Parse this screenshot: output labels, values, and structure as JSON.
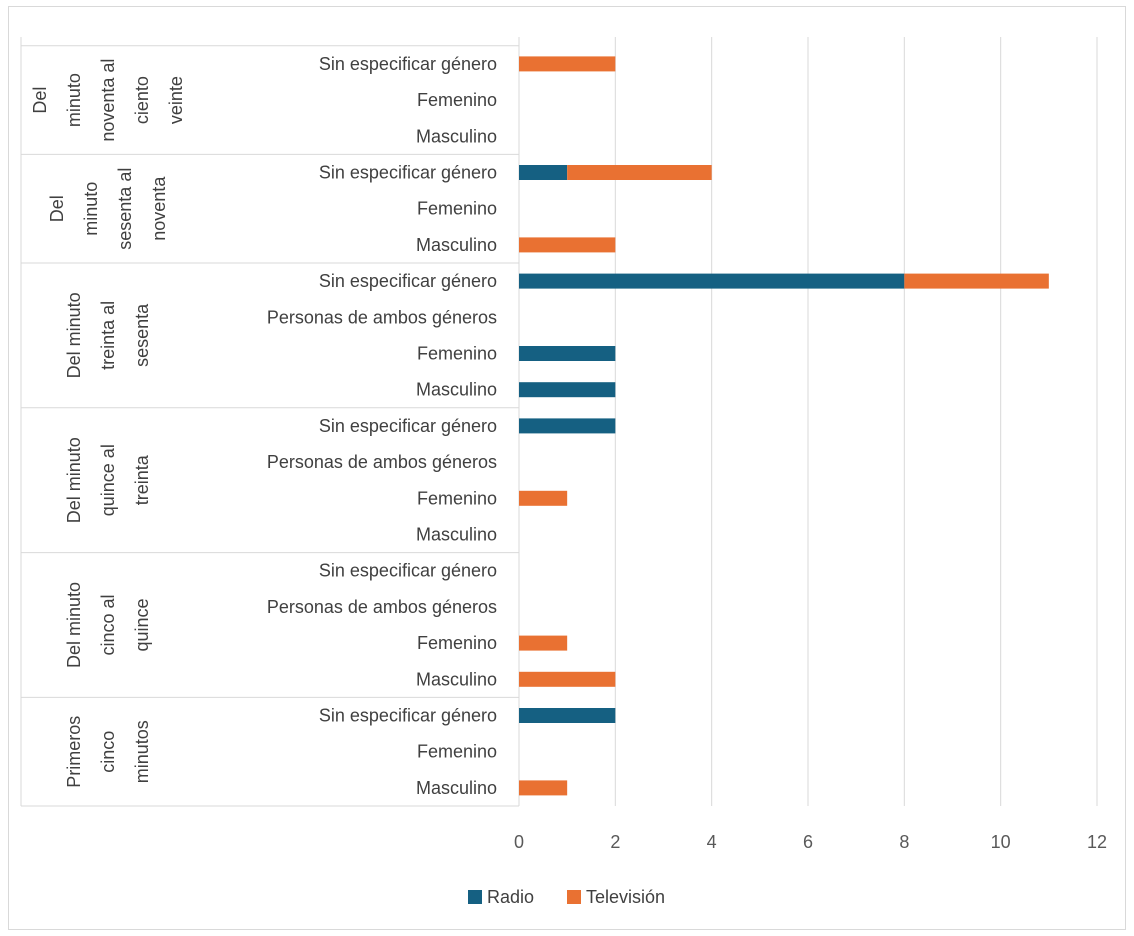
{
  "chart_data": {
    "type": "bar",
    "orientation": "horizontal",
    "stacked": true,
    "title": "",
    "xlabel": "",
    "ylabel": "",
    "xlim": [
      0,
      12
    ],
    "x_ticks": [
      0,
      2,
      4,
      6,
      8,
      10,
      12
    ],
    "grid": "vertical",
    "legend_position": "bottom",
    "series": [
      {
        "name": "Radio",
        "color": "#156082"
      },
      {
        "name": "Televisión",
        "color": "#E97132"
      }
    ],
    "groups": [
      {
        "label_lines": [
          "Primeros",
          "cinco",
          "minutos"
        ],
        "categories": [
          {
            "label": "Masculino",
            "values": [
              0,
              1
            ]
          },
          {
            "label": "Femenino",
            "values": [
              0,
              0
            ]
          },
          {
            "label": "Sin especificar género",
            "values": [
              2,
              0
            ]
          }
        ]
      },
      {
        "label_lines": [
          "Del minuto",
          "cinco al",
          "quince"
        ],
        "categories": [
          {
            "label": "Masculino",
            "values": [
              0,
              2
            ]
          },
          {
            "label": "Femenino",
            "values": [
              0,
              1
            ]
          },
          {
            "label": "Personas de ambos géneros",
            "values": [
              0,
              0
            ]
          },
          {
            "label": "Sin especificar género",
            "values": [
              0,
              0
            ]
          }
        ]
      },
      {
        "label_lines": [
          "Del minuto",
          "quince al",
          "treinta"
        ],
        "categories": [
          {
            "label": "Masculino",
            "values": [
              0,
              0
            ]
          },
          {
            "label": "Femenino",
            "values": [
              0,
              1
            ]
          },
          {
            "label": "Personas de ambos géneros",
            "values": [
              0,
              0
            ]
          },
          {
            "label": "Sin especificar género",
            "values": [
              2,
              0
            ]
          }
        ]
      },
      {
        "label_lines": [
          "Del minuto",
          "treinta al",
          "sesenta"
        ],
        "categories": [
          {
            "label": "Masculino",
            "values": [
              2,
              0
            ]
          },
          {
            "label": "Femenino",
            "values": [
              2,
              0
            ]
          },
          {
            "label": "Personas de ambos géneros",
            "values": [
              0,
              0
            ]
          },
          {
            "label": "Sin especificar género",
            "values": [
              8,
              3
            ]
          }
        ]
      },
      {
        "label_lines": [
          "Del",
          "minuto",
          "sesenta al",
          "noventa"
        ],
        "categories": [
          {
            "label": "Masculino",
            "values": [
              0,
              2
            ]
          },
          {
            "label": "Femenino",
            "values": [
              0,
              0
            ]
          },
          {
            "label": "Sin especificar género",
            "values": [
              1,
              3
            ]
          }
        ]
      },
      {
        "label_lines": [
          "Del",
          "minuto",
          "noventa al",
          "ciento",
          "veinte"
        ],
        "categories": [
          {
            "label": "Masculino",
            "values": [
              0,
              0
            ]
          },
          {
            "label": "Femenino",
            "values": [
              0,
              0
            ]
          },
          {
            "label": "Sin especificar género",
            "values": [
              0,
              2
            ]
          }
        ]
      }
    ]
  }
}
